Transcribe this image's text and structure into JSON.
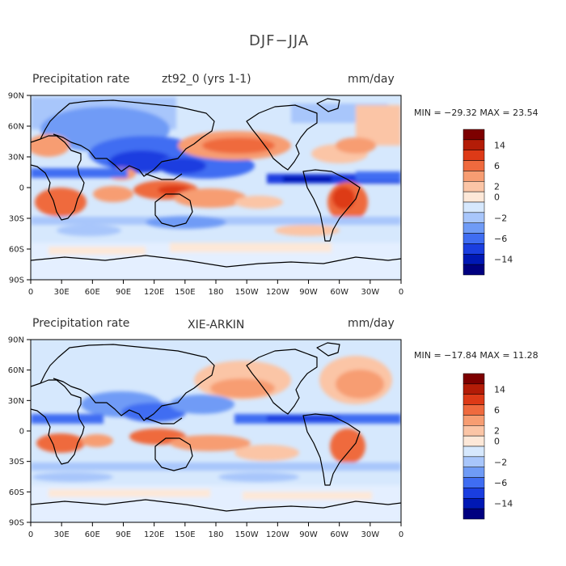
{
  "title": "DJF−JJA",
  "panels": [
    {
      "left_label": "Precipitation rate",
      "center_label": "zt92_0 (yrs 1-1)",
      "right_label": "mm/day",
      "minmax": "MIN = −29.32 MAX =  23.54"
    },
    {
      "left_label": "Precipitation rate",
      "center_label": "XIE-ARKIN",
      "right_label": "mm/day",
      "minmax": "MIN = −17.84 MAX =  11.28"
    }
  ],
  "chart_data": [
    {
      "type": "heatmap",
      "title": "Precipitation rate  zt92_0 (yrs 1-1)",
      "units": "mm/day",
      "x_ticks": [
        "0",
        "30E",
        "60E",
        "90E",
        "120E",
        "150E",
        "180",
        "150W",
        "120W",
        "90W",
        "60W",
        "30W",
        "0"
      ],
      "y_ticks": [
        "90N",
        "60N",
        "30N",
        "0",
        "30S",
        "60S",
        "90S"
      ],
      "min": -29.32,
      "max": 23.54,
      "colorbar_labels": [
        "14",
        "6",
        "2",
        "0",
        "−2",
        "−6",
        "−14"
      ]
    },
    {
      "type": "heatmap",
      "title": "Precipitation rate  XIE-ARKIN",
      "units": "mm/day",
      "x_ticks": [
        "0",
        "30E",
        "60E",
        "90E",
        "120E",
        "150E",
        "180",
        "150W",
        "120W",
        "90W",
        "60W",
        "30W",
        "0"
      ],
      "y_ticks": [
        "90N",
        "60N",
        "30N",
        "0",
        "30S",
        "60S",
        "90S"
      ],
      "min": -17.84,
      "max": 11.28,
      "colorbar_labels": [
        "14",
        "6",
        "2",
        "0",
        "−2",
        "−6",
        "−14"
      ]
    }
  ],
  "colors": {
    "scale": [
      "#000080",
      "#0018b4",
      "#1a3ee0",
      "#3f6df2",
      "#6f9bf6",
      "#a8c6fb",
      "#d6e8fd",
      "#fde8d8",
      "#fbc5a6",
      "#f79d72",
      "#ef6a3e",
      "#dd3a17",
      "#b31c07",
      "#7d0000"
    ]
  }
}
